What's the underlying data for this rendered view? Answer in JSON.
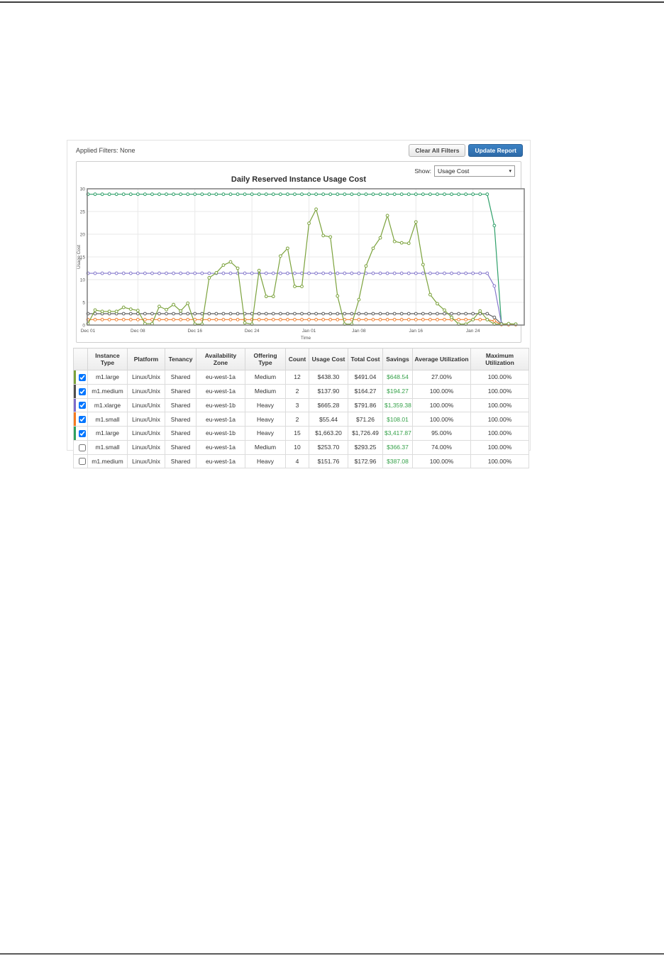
{
  "page": {
    "applied_filters_label": "Applied Filters: None",
    "clear_filters_button": "Clear All Filters",
    "update_report_button": "Update Report",
    "show_label": "Show:",
    "show_value": "Usage Cost",
    "accent_blue": "#3173b7",
    "savings_green": "#36a14a"
  },
  "chart_data": {
    "type": "line",
    "title": "Daily Reserved Instance Usage Cost",
    "xlabel": "Time",
    "ylabel": "Usage Cost",
    "ylim": [
      0,
      30
    ],
    "yticks": [
      0,
      5,
      10,
      15,
      20,
      25,
      30
    ],
    "x_tick_labels": [
      "Dec 01",
      "Dec 08",
      "Dec 16",
      "Dec 24",
      "Jan 01",
      "Jan 08",
      "Jan 16",
      "Jan 24"
    ],
    "x_tick_days": [
      0,
      7,
      15,
      23,
      31,
      38,
      46,
      54
    ],
    "days": 61,
    "grid": true,
    "legend": "none",
    "series": [
      {
        "name": "m1.large eu-west-1b Heavy",
        "color": "#2fa06a",
        "values": [
          28.8,
          28.8,
          28.8,
          28.8,
          28.8,
          28.8,
          28.8,
          28.8,
          28.8,
          28.8,
          28.8,
          28.8,
          28.8,
          28.8,
          28.8,
          28.8,
          28.8,
          28.8,
          28.8,
          28.8,
          28.8,
          28.8,
          28.8,
          28.8,
          28.8,
          28.8,
          28.8,
          28.8,
          28.8,
          28.8,
          28.8,
          28.8,
          28.8,
          28.8,
          28.8,
          28.8,
          28.8,
          28.8,
          28.8,
          28.8,
          28.8,
          28.8,
          28.8,
          28.8,
          28.8,
          28.8,
          28.8,
          28.8,
          28.8,
          28.8,
          28.8,
          28.8,
          28.8,
          28.8,
          28.8,
          28.8,
          28.8,
          21.9,
          0.2,
          0.2,
          0.2
        ]
      },
      {
        "name": "m1.xlarge eu-west-1b Heavy",
        "color": "#8578cc",
        "values": [
          11.4,
          11.4,
          11.4,
          11.4,
          11.4,
          11.4,
          11.4,
          11.4,
          11.4,
          11.4,
          11.4,
          11.4,
          11.4,
          11.4,
          11.4,
          11.4,
          11.4,
          11.4,
          11.4,
          11.4,
          11.4,
          11.4,
          11.4,
          11.4,
          11.4,
          11.4,
          11.4,
          11.4,
          11.4,
          11.4,
          11.4,
          11.4,
          11.4,
          11.4,
          11.4,
          11.4,
          11.4,
          11.4,
          11.4,
          11.4,
          11.4,
          11.4,
          11.4,
          11.4,
          11.4,
          11.4,
          11.4,
          11.4,
          11.4,
          11.4,
          11.4,
          11.4,
          11.4,
          11.4,
          11.4,
          11.4,
          11.4,
          8.6,
          0.3,
          0.1,
          0.1
        ]
      },
      {
        "name": "m1.medium eu-west-1a Medium",
        "color": "#5f5f5f",
        "values": [
          2.5,
          2.5,
          2.5,
          2.5,
          2.5,
          2.5,
          2.5,
          2.5,
          2.5,
          2.5,
          2.5,
          2.5,
          2.5,
          2.5,
          2.5,
          2.5,
          2.5,
          2.5,
          2.5,
          2.5,
          2.5,
          2.5,
          2.5,
          2.5,
          2.5,
          2.5,
          2.5,
          2.5,
          2.5,
          2.5,
          2.5,
          2.5,
          2.5,
          2.5,
          2.5,
          2.5,
          2.5,
          2.5,
          2.5,
          2.5,
          2.5,
          2.5,
          2.5,
          2.5,
          2.5,
          2.5,
          2.5,
          2.5,
          2.5,
          2.5,
          2.5,
          2.5,
          2.5,
          2.5,
          2.5,
          2.5,
          2.5,
          1.7,
          0.2,
          0.1,
          0.1
        ]
      },
      {
        "name": "m1.small eu-west-1a Heavy",
        "color": "#f08030",
        "values": [
          1.2,
          1.2,
          1.2,
          1.2,
          1.2,
          1.2,
          1.2,
          1.2,
          1.2,
          1.2,
          1.2,
          1.2,
          1.2,
          1.2,
          1.2,
          1.2,
          1.2,
          1.2,
          1.2,
          1.2,
          1.2,
          1.2,
          1.2,
          1.2,
          1.2,
          1.2,
          1.2,
          1.2,
          1.2,
          1.2,
          1.2,
          1.2,
          1.2,
          1.2,
          1.2,
          1.2,
          1.2,
          1.2,
          1.2,
          1.2,
          1.2,
          1.2,
          1.2,
          1.2,
          1.2,
          1.2,
          1.2,
          1.2,
          1.2,
          1.2,
          1.2,
          1.2,
          1.2,
          1.2,
          1.2,
          1.2,
          1.2,
          0.9,
          0.1,
          0.1,
          0.1
        ]
      },
      {
        "name": "m1.large eu-west-1a Medium",
        "color": "#7ba23c",
        "values": [
          0.3,
          3.3,
          3.0,
          3.0,
          3.0,
          3.9,
          3.5,
          3.2,
          0.3,
          0.3,
          4.1,
          3.4,
          4.5,
          3.1,
          4.8,
          0.2,
          0.2,
          10.4,
          11.5,
          13.2,
          13.9,
          12.5,
          0.5,
          0.2,
          12.0,
          6.3,
          6.3,
          15.2,
          16.9,
          8.5,
          8.5,
          22.4,
          25.5,
          19.7,
          19.4,
          6.4,
          0.2,
          0.2,
          5.6,
          13.0,
          16.9,
          19.2,
          24.1,
          18.4,
          18.1,
          18.0,
          22.7,
          13.3,
          6.7,
          4.7,
          3.3,
          1.7,
          0.2,
          0.2,
          1.2,
          3.1,
          1.2,
          0.2,
          0.2,
          0.3,
          0.2
        ]
      }
    ]
  },
  "table": {
    "headers": [
      "Instance Type",
      "Platform",
      "Tenancy",
      "Availability Zone",
      "Offering Type",
      "Count",
      "Usage Cost",
      "Total Cost",
      "Savings",
      "Average Utilization",
      "Maximum Utilization"
    ],
    "rows": [
      {
        "checked": true,
        "color": "#7ba23c",
        "cells": [
          "m1.large",
          "Linux/Unix",
          "Shared",
          "eu-west-1a",
          "Medium",
          "12",
          "$438.30",
          "$491.04",
          "$648.54",
          "27.00%",
          "100.00%"
        ]
      },
      {
        "checked": true,
        "color": "#4d4d4d",
        "cells": [
          "m1.medium",
          "Linux/Unix",
          "Shared",
          "eu-west-1a",
          "Medium",
          "2",
          "$137.90",
          "$164.27",
          "$194.27",
          "100.00%",
          "100.00%"
        ]
      },
      {
        "checked": true,
        "color": "#7e6bc8",
        "cells": [
          "m1.xlarge",
          "Linux/Unix",
          "Shared",
          "eu-west-1b",
          "Heavy",
          "3",
          "$665.28",
          "$791.86",
          "$1,359.38",
          "100.00%",
          "100.00%"
        ]
      },
      {
        "checked": true,
        "color": "#f47920",
        "cells": [
          "m1.small",
          "Linux/Unix",
          "Shared",
          "eu-west-1a",
          "Heavy",
          "2",
          "$55.44",
          "$71.26",
          "$108.01",
          "100.00%",
          "100.00%"
        ]
      },
      {
        "checked": true,
        "color": "#2fa05f",
        "cells": [
          "m1.large",
          "Linux/Unix",
          "Shared",
          "eu-west-1b",
          "Heavy",
          "15",
          "$1,663.20",
          "$1,726.49",
          "$3,417.87",
          "95.00%",
          "100.00%"
        ]
      },
      {
        "checked": false,
        "color": null,
        "cells": [
          "m1.small",
          "Linux/Unix",
          "Shared",
          "eu-west-1a",
          "Medium",
          "10",
          "$253.70",
          "$293.25",
          "$366.37",
          "74.00%",
          "100.00%"
        ]
      },
      {
        "checked": false,
        "color": null,
        "cells": [
          "m1.medium",
          "Linux/Unix",
          "Shared",
          "eu-west-1a",
          "Heavy",
          "4",
          "$151.76",
          "$172.96",
          "$387.08",
          "100.00%",
          "100.00%"
        ]
      }
    ]
  }
}
